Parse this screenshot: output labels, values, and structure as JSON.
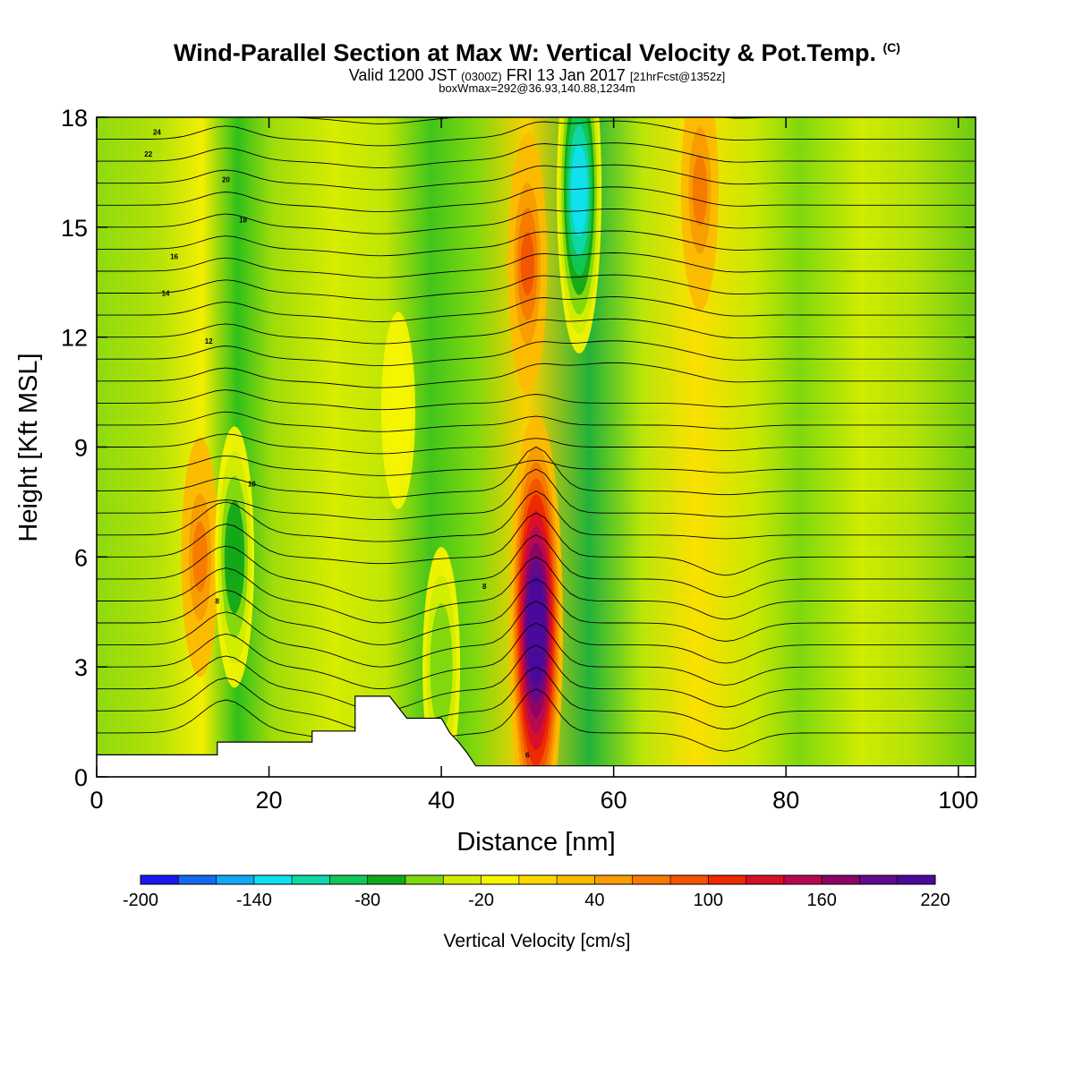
{
  "header": {
    "title": "Wind-Parallel Section at Max W: Vertical Velocity & Pot.Temp.",
    "copyright": "(C)",
    "subtitle_a": "Valid 1200 JST",
    "subtitle_b": "(0300Z)",
    "subtitle_c": "FRI 13 Jan 2017",
    "subtitle_d": "[21hrFcst@1352z]",
    "subtitle_e": "boxWmax=292@36.93,140.88,1234m"
  },
  "chart_data": {
    "type": "heatmap",
    "xlabel": "Distance [nm]",
    "ylabel": "Height [Kft MSL]",
    "xlim": [
      0,
      102
    ],
    "ylim": [
      0,
      18
    ],
    "xticks": [
      0,
      20,
      40,
      60,
      80,
      100
    ],
    "yticks": [
      0,
      3,
      6,
      9,
      12,
      15,
      18
    ],
    "colorbar": {
      "title": "Vertical Velocity [cm/s]",
      "min": -200,
      "max": 240,
      "step": 20,
      "labels": [
        -200,
        -140,
        -80,
        -20,
        40,
        100,
        160,
        220
      ],
      "colors": [
        "#1a1af0",
        "#1469f2",
        "#12a8f5",
        "#10e0ee",
        "#10d8a8",
        "#10c85a",
        "#12a818",
        "#7fd80e",
        "#d0ec00",
        "#f6f400",
        "#fcd800",
        "#fcba00",
        "#f89c00",
        "#f67a00",
        "#f25400",
        "#ee2800",
        "#d61028",
        "#b60850",
        "#8a0466",
        "#600a8c",
        "#4a0a9a"
      ]
    },
    "vertical_velocity_features": [
      {
        "x": 51,
        "z_kft": 4,
        "w": 240
      },
      {
        "x": 56,
        "z_kft": 16,
        "w": -140
      },
      {
        "x": 12,
        "z_kft": 6,
        "w": 60
      },
      {
        "x": 16,
        "z_kft": 6,
        "w": -80
      },
      {
        "x": 40,
        "z_kft": 3,
        "w": -60
      },
      {
        "x": 35,
        "z_kft": 10,
        "w": -20
      },
      {
        "x": 50,
        "z_kft": 14,
        "w": 80
      },
      {
        "x": 70,
        "z_kft": 16,
        "w": 60
      }
    ],
    "terrain": [
      {
        "x": 0,
        "z_kft": 0.6
      },
      {
        "x": 14,
        "z_kft": 0.6
      },
      {
        "x": 14,
        "z_kft": 0.95
      },
      {
        "x": 25,
        "z_kft": 0.95
      },
      {
        "x": 25,
        "z_kft": 1.25
      },
      {
        "x": 30,
        "z_kft": 1.25
      },
      {
        "x": 30,
        "z_kft": 2.2
      },
      {
        "x": 34,
        "z_kft": 2.2
      },
      {
        "x": 35,
        "z_kft": 1.9
      },
      {
        "x": 36,
        "z_kft": 1.6
      },
      {
        "x": 40,
        "z_kft": 1.6
      },
      {
        "x": 41,
        "z_kft": 1.2
      },
      {
        "x": 42,
        "z_kft": 0.95
      },
      {
        "x": 43,
        "z_kft": 0.65
      },
      {
        "x": 44,
        "z_kft": 0.3
      },
      {
        "x": 102,
        "z_kft": 0.3
      }
    ],
    "potential_temperature": {
      "units": "deg C",
      "contour_labels": [
        "24",
        "22",
        "20",
        "18",
        "16",
        "14",
        "12",
        "10",
        "8",
        "6"
      ]
    }
  }
}
